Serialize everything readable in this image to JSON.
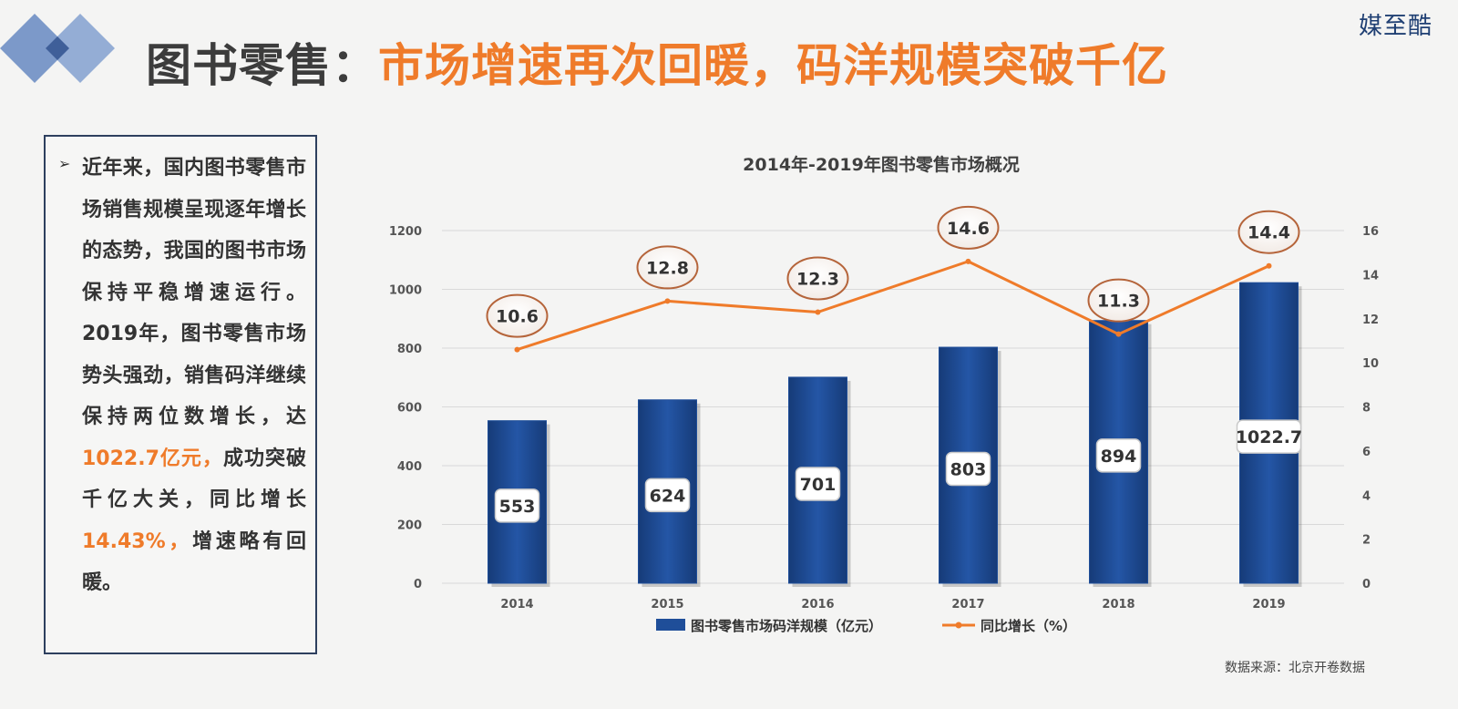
{
  "header": {
    "brand": "媒至酷",
    "title_lead": "图书零售：",
    "title_rest": "市场增速再次回暖，码洋规模突破千亿"
  },
  "summary": {
    "bullet_icon": "arrow-bullet-icon",
    "text_1": "近年来，国内图书零售市场销售规模呈现逐年增长的态势，我国的图书市场保持平稳增速运行。2019年，图书零售市场势头强劲，销售码洋继续保持两位数增长，达",
    "highlight_1": "1022.7亿元，",
    "text_2": "成功突破千亿大关，同比增长",
    "highlight_2": "14.43%，",
    "text_3": "增速略有回暖。"
  },
  "source": "数据来源：北京开卷数据",
  "colors": {
    "bar": "#1f4e99",
    "line": "#ef7b2a",
    "accent": "#ef7b2a",
    "logo": "#5a7bb5"
  },
  "chart_data": {
    "type": "bar",
    "title": "2014年-2019年图书零售市场概况",
    "categories": [
      "2014",
      "2015",
      "2016",
      "2017",
      "2018",
      "2019"
    ],
    "series": [
      {
        "name": "图书零售市场码洋规模（亿元）",
        "type": "bar",
        "axis": "left",
        "values": [
          553,
          624,
          701,
          803,
          894,
          1022.7
        ],
        "labels": [
          "553",
          "624",
          "701",
          "803",
          "894",
          "1022.7"
        ]
      },
      {
        "name": "同比增长（%）",
        "type": "line",
        "axis": "right",
        "values": [
          10.6,
          12.8,
          12.3,
          14.6,
          11.3,
          14.4
        ],
        "labels": [
          "10.6",
          "12.8",
          "12.3",
          "14.6",
          "11.3",
          "14.4"
        ]
      }
    ],
    "y_left": {
      "lim": [
        0,
        1200
      ],
      "ticks": [
        "0",
        "200",
        "400",
        "600",
        "800",
        "1000",
        "1200"
      ]
    },
    "y_right": {
      "lim": [
        0,
        16
      ],
      "ticks": [
        "0",
        "2",
        "4",
        "6",
        "8",
        "10",
        "12",
        "14",
        "16"
      ]
    },
    "grid": true,
    "legend": "bottom"
  }
}
